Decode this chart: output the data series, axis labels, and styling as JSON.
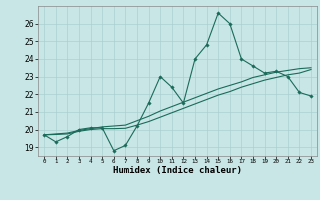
{
  "title": "",
  "xlabel": "Humidex (Indice chaleur)",
  "background_color": "#c8e6e6",
  "grid_color": "#aad0d0",
  "line_color": "#1a6b5a",
  "xlim": [
    -0.5,
    23.5
  ],
  "ylim": [
    18.5,
    27.0
  ],
  "xticks": [
    0,
    1,
    2,
    3,
    4,
    5,
    6,
    7,
    8,
    9,
    10,
    11,
    12,
    13,
    14,
    15,
    16,
    17,
    18,
    19,
    20,
    21,
    22,
    23
  ],
  "yticks": [
    19,
    20,
    21,
    22,
    23,
    24,
    25,
    26
  ],
  "main_y": [
    19.7,
    19.3,
    19.6,
    20.0,
    20.1,
    20.1,
    18.8,
    19.1,
    20.2,
    21.5,
    23.0,
    22.4,
    21.5,
    24.0,
    24.8,
    26.6,
    26.0,
    24.0,
    23.6,
    23.2,
    23.3,
    23.0,
    22.1,
    21.9
  ],
  "line2_y": [
    19.7,
    19.75,
    19.8,
    19.95,
    20.05,
    20.15,
    20.2,
    20.25,
    20.5,
    20.75,
    21.05,
    21.3,
    21.55,
    21.8,
    22.05,
    22.3,
    22.5,
    22.7,
    22.95,
    23.1,
    23.25,
    23.35,
    23.45,
    23.5
  ],
  "line3_y": [
    19.7,
    19.72,
    19.75,
    19.9,
    20.0,
    20.05,
    20.05,
    20.07,
    20.25,
    20.45,
    20.7,
    20.95,
    21.2,
    21.45,
    21.7,
    21.95,
    22.15,
    22.4,
    22.6,
    22.8,
    22.95,
    23.1,
    23.2,
    23.4
  ]
}
